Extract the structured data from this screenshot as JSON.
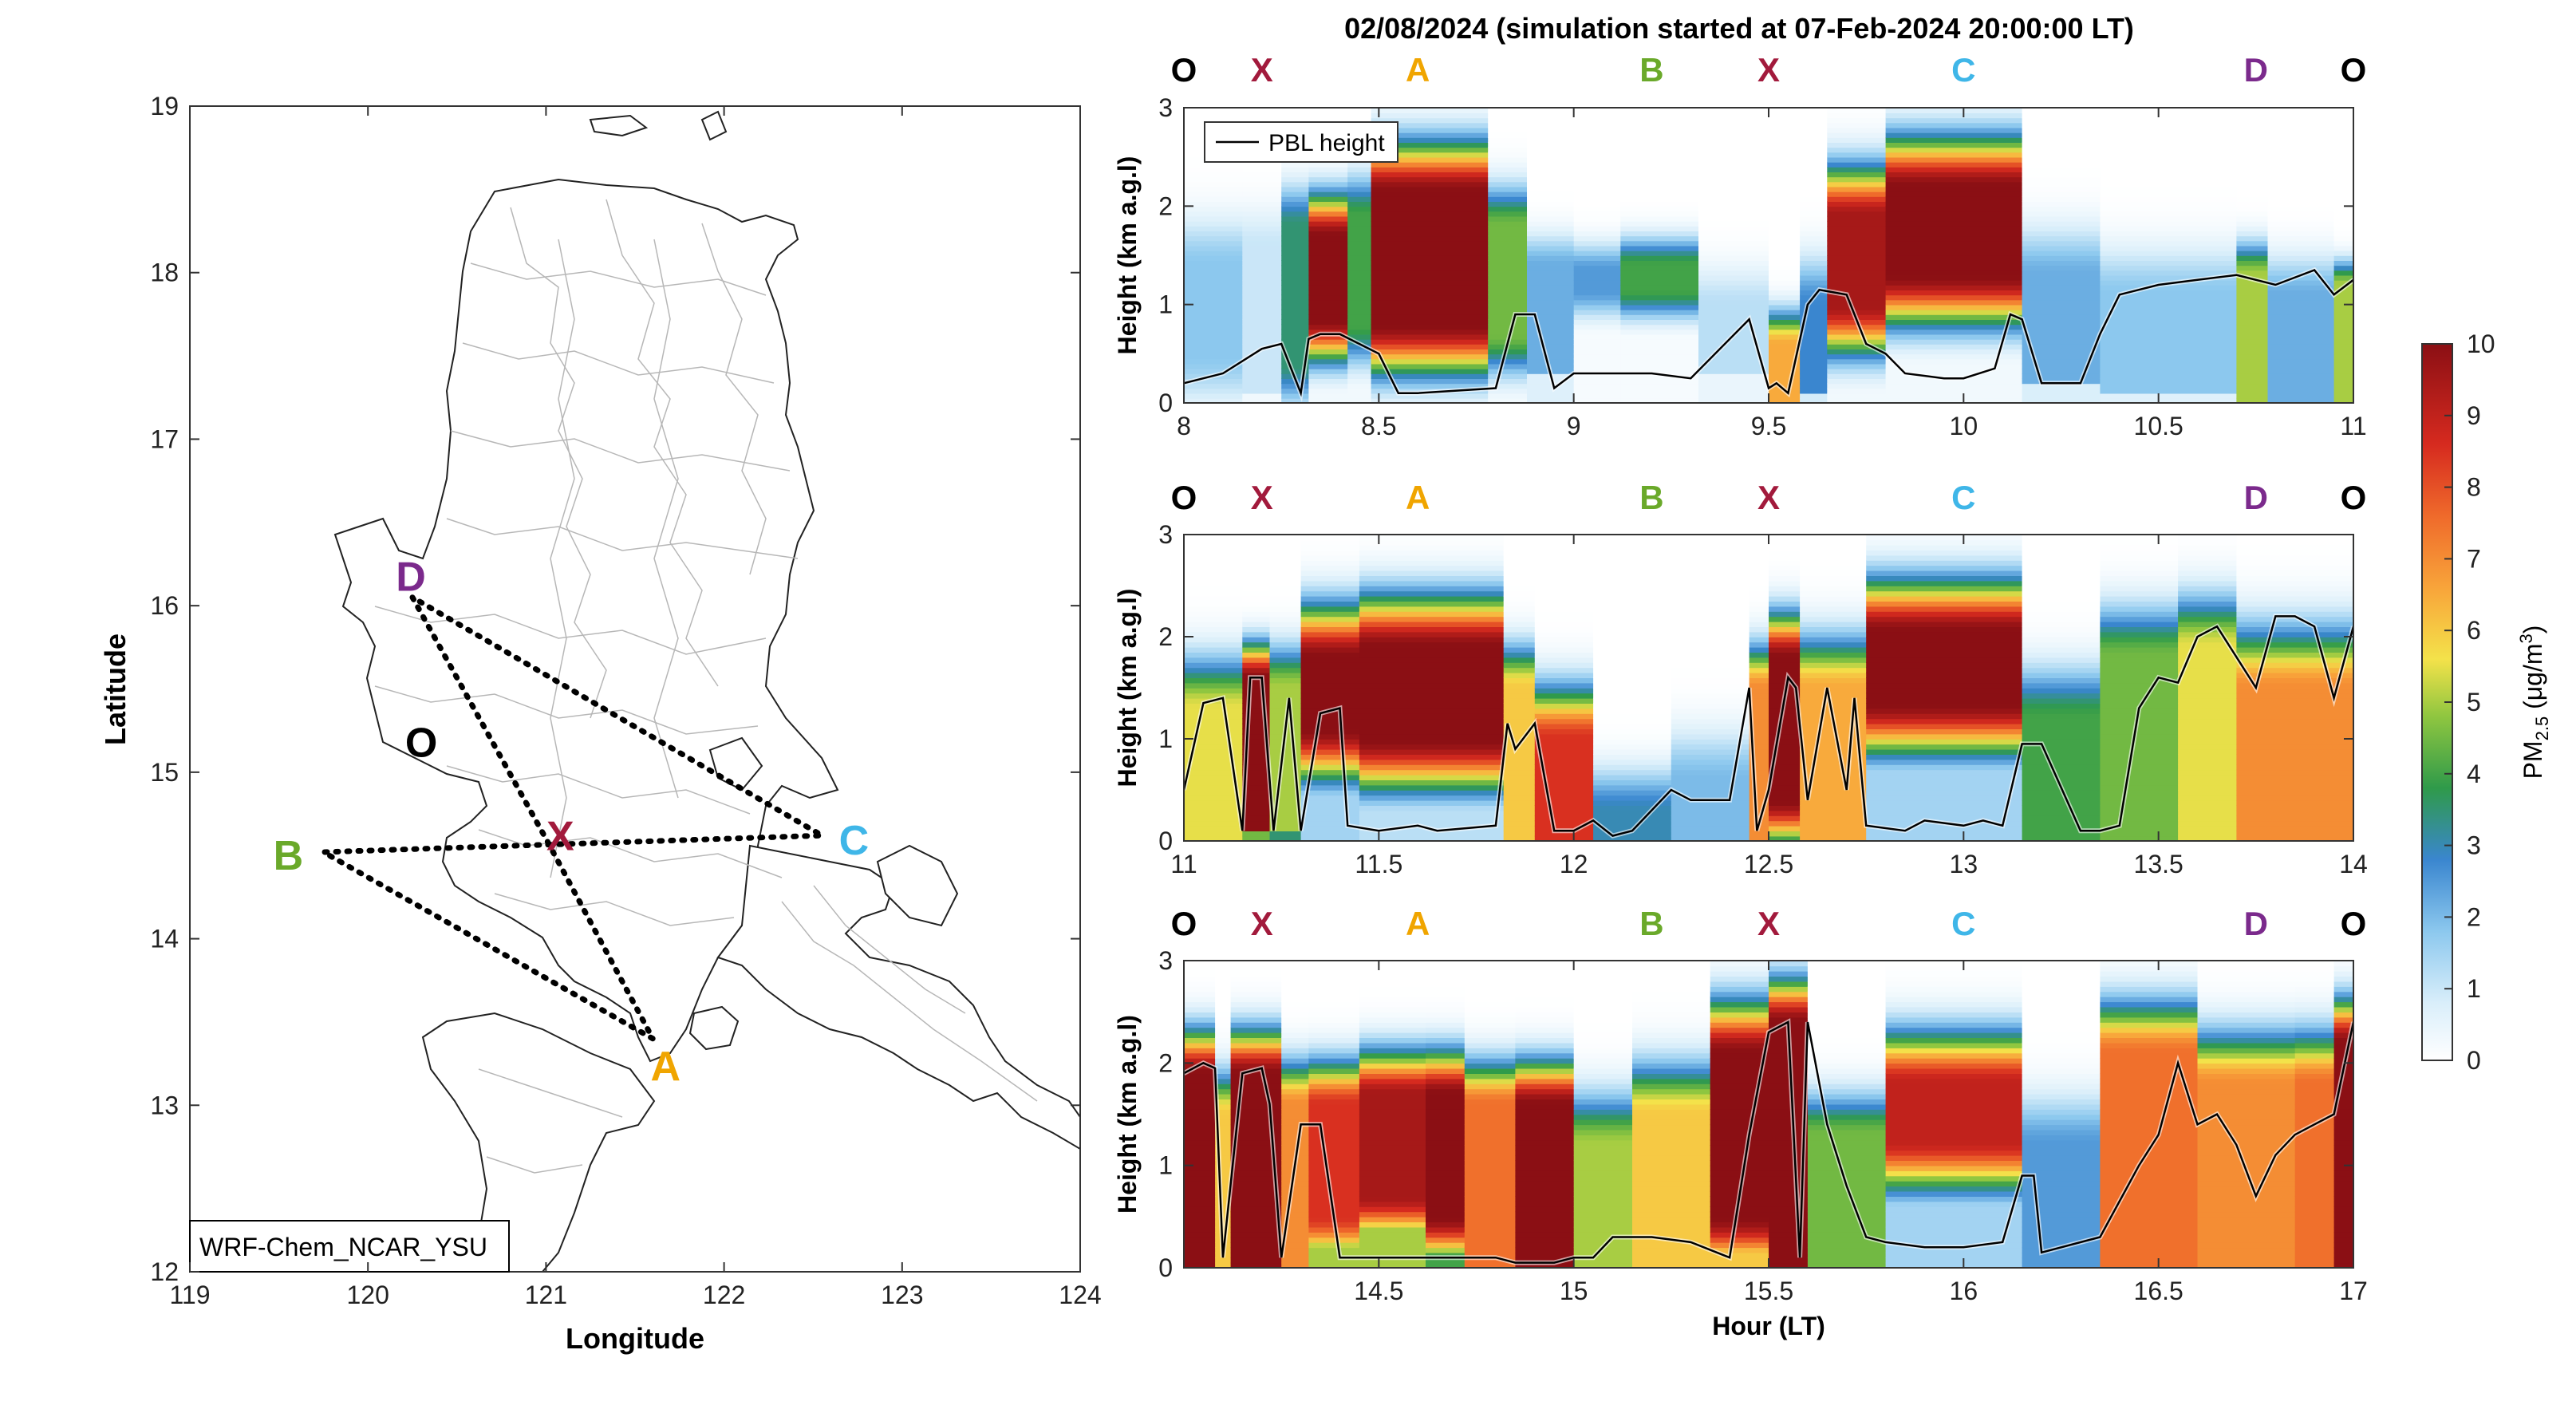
{
  "title": "02/08/2024 (simulation started at 07-Feb-2024 20:00:00 LT)",
  "colors": {
    "O": "#000000",
    "X": "#a21a3c",
    "A": "#f0a500",
    "B": "#6aa92a",
    "C": "#3fb6e8",
    "D": "#7b2a8c",
    "route": "#000000",
    "pbl": "#000000"
  },
  "map": {
    "xlabel": "Longitude",
    "ylabel": "Latitude",
    "xlim": [
      119,
      124
    ],
    "ylim": [
      12,
      19
    ],
    "xticks": [
      "119",
      "120",
      "121",
      "122",
      "123",
      "124"
    ],
    "yticks": [
      "12",
      "13",
      "14",
      "15",
      "16",
      "17",
      "18",
      "19"
    ],
    "model_label": "WRF-Chem_NCAR_YSU",
    "points": [
      {
        "name": "O",
        "lon": 120.3,
        "lat": 15.17
      },
      {
        "name": "X",
        "lon": 121.0,
        "lat": 14.6
      },
      {
        "name": "A",
        "lon": 121.6,
        "lat": 13.4
      },
      {
        "name": "B",
        "lon": 119.75,
        "lat": 14.52
      },
      {
        "name": "C",
        "lon": 122.55,
        "lat": 14.62
      },
      {
        "name": "D",
        "lon": 120.25,
        "lat": 16.05
      }
    ],
    "route": [
      "D",
      "X",
      "A",
      "B",
      "C",
      "D"
    ]
  },
  "chart_data": [
    {
      "type": "heatmap",
      "variable": "PM2.5",
      "xlim": [
        8,
        11
      ],
      "ylim": [
        0,
        3
      ],
      "ylabel": "Height (km a.g.l)",
      "xticks": [
        "8",
        "8.5",
        "9",
        "9.5",
        "10",
        "10.5",
        "11"
      ],
      "yticks": [
        "0",
        "1",
        "2",
        "3"
      ],
      "legend": "PBL height",
      "legend_position": "top-left",
      "segment_labels": [
        {
          "label": "O",
          "x": 8.0
        },
        {
          "label": "X",
          "x": 8.2
        },
        {
          "label": "A",
          "x": 8.6
        },
        {
          "label": "B",
          "x": 9.2
        },
        {
          "label": "X",
          "x": 9.5
        },
        {
          "label": "C",
          "x": 10.0
        },
        {
          "label": "D",
          "x": 10.75
        },
        {
          "label": "O",
          "x": 11.0
        }
      ],
      "columns": [
        {
          "x0": 8.0,
          "x1": 8.15,
          "base": 0.1,
          "peak": 1.8,
          "top": 1.4,
          "bot": 0.5,
          "spread": 0.6
        },
        {
          "x0": 8.15,
          "x1": 8.25,
          "base": 0.1,
          "peak": 1.0,
          "top": 1.6,
          "bot": 0.1,
          "spread": 0.5
        },
        {
          "x0": 8.25,
          "x1": 8.32,
          "base": 0.2,
          "peak": 3.5,
          "top": 1.8,
          "bot": 0.4,
          "spread": 0.5
        },
        {
          "x0": 8.32,
          "x1": 8.42,
          "base": 0.3,
          "peak": 10,
          "top": 1.7,
          "bot": 0.85,
          "spread": 0.5
        },
        {
          "x0": 8.42,
          "x1": 8.48,
          "base": 0.3,
          "peak": 4,
          "top": 1.9,
          "bot": 0.8,
          "spread": 0.5
        },
        {
          "x0": 8.48,
          "x1": 8.78,
          "base": 0.3,
          "peak": 10,
          "top": 2.15,
          "bot": 0.8,
          "spread": 0.6
        },
        {
          "x0": 8.78,
          "x1": 8.88,
          "base": 0.3,
          "peak": 4.5,
          "top": 1.8,
          "bot": 0.7,
          "spread": 0.5
        },
        {
          "x0": 8.88,
          "x1": 9.0,
          "base": 0.2,
          "peak": 2.2,
          "top": 1.4,
          "bot": 0.3,
          "spread": 0.4
        },
        {
          "x0": 9.0,
          "x1": 9.12,
          "base": 0.2,
          "peak": 2.5,
          "top": 1.35,
          "bot": 1.15,
          "spread": 0.35
        },
        {
          "x0": 9.12,
          "x1": 9.32,
          "base": 0.2,
          "peak": 4,
          "top": 1.4,
          "bot": 1.15,
          "spread": 0.35
        },
        {
          "x0": 9.32,
          "x1": 9.5,
          "base": 0.2,
          "peak": 1.2,
          "top": 1.0,
          "bot": 0.3,
          "spread": 0.5
        },
        {
          "x0": 9.5,
          "x1": 9.58,
          "base": 0.2,
          "peak": 6.5,
          "top": 0.6,
          "bot": 0.0,
          "spread": 0.4
        },
        {
          "x0": 9.58,
          "x1": 9.65,
          "base": 0.2,
          "peak": 2.8,
          "top": 1.0,
          "bot": 0.1,
          "spread": 0.6
        },
        {
          "x0": 9.65,
          "x1": 9.8,
          "base": 0.3,
          "peak": 9.5,
          "top": 1.9,
          "bot": 1.0,
          "spread": 0.6
        },
        {
          "x0": 9.8,
          "x1": 10.15,
          "base": 0.3,
          "peak": 10,
          "top": 2.2,
          "bot": 1.3,
          "spread": 0.6
        },
        {
          "x0": 10.15,
          "x1": 10.35,
          "base": 0.3,
          "peak": 2.2,
          "top": 1.3,
          "bot": 0.2,
          "spread": 0.6
        },
        {
          "x0": 10.35,
          "x1": 10.7,
          "base": 0.3,
          "peak": 1.8,
          "top": 1.1,
          "bot": 0.1,
          "spread": 0.6
        },
        {
          "x0": 10.7,
          "x1": 10.78,
          "base": 0.3,
          "peak": 5,
          "top": 1.3,
          "bot": 0.0,
          "spread": 0.4
        },
        {
          "x0": 10.78,
          "x1": 10.95,
          "base": 0.3,
          "peak": 2.2,
          "top": 1.1,
          "bot": 0.0,
          "spread": 0.5
        },
        {
          "x0": 10.95,
          "x1": 11.0,
          "base": 0.3,
          "peak": 5,
          "top": 1.2,
          "bot": 0.0,
          "spread": 0.3
        }
      ],
      "pbl_height": {
        "x": [
          8.0,
          8.1,
          8.2,
          8.25,
          8.3,
          8.32,
          8.35,
          8.4,
          8.5,
          8.55,
          8.6,
          8.8,
          8.85,
          8.9,
          8.95,
          9.0,
          9.2,
          9.3,
          9.45,
          9.5,
          9.52,
          9.55,
          9.6,
          9.63,
          9.7,
          9.75,
          9.8,
          9.85,
          9.95,
          10.0,
          10.08,
          10.12,
          10.15,
          10.2,
          10.3,
          10.35,
          10.4,
          10.5,
          10.6,
          10.7,
          10.8,
          10.9,
          10.95,
          11.0
        ],
        "y": [
          0.2,
          0.3,
          0.55,
          0.6,
          0.1,
          0.65,
          0.7,
          0.7,
          0.5,
          0.1,
          0.1,
          0.15,
          0.9,
          0.9,
          0.15,
          0.3,
          0.3,
          0.25,
          0.85,
          0.15,
          0.2,
          0.1,
          1.0,
          1.15,
          1.1,
          0.6,
          0.5,
          0.3,
          0.25,
          0.25,
          0.35,
          0.9,
          0.85,
          0.2,
          0.2,
          0.7,
          1.1,
          1.2,
          1.25,
          1.3,
          1.2,
          1.35,
          1.1,
          1.25
        ]
      }
    },
    {
      "type": "heatmap",
      "variable": "PM2.5",
      "xlim": [
        11,
        14
      ],
      "ylim": [
        0,
        3
      ],
      "ylabel": "Height (km a.g.l)",
      "xticks": [
        "11",
        "11.5",
        "12",
        "12.5",
        "13",
        "13.5",
        "14"
      ],
      "yticks": [
        "0",
        "1",
        "2",
        "3"
      ],
      "segment_labels": [
        {
          "label": "O",
          "x": 11.0
        },
        {
          "label": "X",
          "x": 11.2
        },
        {
          "label": "A",
          "x": 11.6
        },
        {
          "label": "B",
          "x": 12.2
        },
        {
          "label": "X",
          "x": 12.5
        },
        {
          "label": "C",
          "x": 13.0
        },
        {
          "label": "D",
          "x": 13.75
        },
        {
          "label": "O",
          "x": 14.0
        }
      ],
      "columns": [
        {
          "x0": 11.0,
          "x1": 11.15,
          "base": 3,
          "peak": 5.5,
          "top": 1.3,
          "bot": 0.0,
          "spread": 0.6
        },
        {
          "x0": 11.15,
          "x1": 11.22,
          "base": 3,
          "peak": 10,
          "top": 1.6,
          "bot": 0.1,
          "spread": 0.4
        },
        {
          "x0": 11.22,
          "x1": 11.3,
          "base": 3,
          "peak": 5,
          "top": 1.5,
          "bot": 0.1,
          "spread": 0.5
        },
        {
          "x0": 11.3,
          "x1": 11.45,
          "base": 1.5,
          "peak": 10,
          "top": 1.8,
          "bot": 1.1,
          "spread": 0.6
        },
        {
          "x0": 11.45,
          "x1": 11.82,
          "base": 1.2,
          "peak": 10,
          "top": 1.9,
          "bot": 1.0,
          "spread": 0.6
        },
        {
          "x0": 11.82,
          "x1": 11.9,
          "base": 3,
          "peak": 6,
          "top": 1.5,
          "bot": 0.0,
          "spread": 0.5
        },
        {
          "x0": 11.9,
          "x1": 12.05,
          "base": 3,
          "peak": 8.5,
          "top": 1.0,
          "bot": 0.0,
          "spread": 0.6
        },
        {
          "x0": 12.05,
          "x1": 12.25,
          "base": 1.5,
          "peak": 3,
          "top": 0.3,
          "bot": 0.0,
          "spread": 0.5
        },
        {
          "x0": 12.25,
          "x1": 12.45,
          "base": 1.5,
          "peak": 2,
          "top": 0.6,
          "bot": 0.0,
          "spread": 0.6
        },
        {
          "x0": 12.45,
          "x1": 12.5,
          "base": 3,
          "peak": 7,
          "top": 1.5,
          "bot": 0.0,
          "spread": 0.5
        },
        {
          "x0": 12.5,
          "x1": 12.58,
          "base": 3,
          "peak": 10,
          "top": 1.8,
          "bot": 0.4,
          "spread": 0.5
        },
        {
          "x0": 12.58,
          "x1": 12.75,
          "base": 3,
          "peak": 6.5,
          "top": 1.5,
          "bot": 0.0,
          "spread": 0.6
        },
        {
          "x0": 12.75,
          "x1": 13.15,
          "base": 1.5,
          "peak": 10,
          "top": 2.05,
          "bot": 1.35,
          "spread": 0.6
        },
        {
          "x0": 13.15,
          "x1": 13.35,
          "base": 1.5,
          "peak": 4,
          "top": 1.2,
          "bot": 0.0,
          "spread": 0.6
        },
        {
          "x0": 13.35,
          "x1": 13.55,
          "base": 3.5,
          "peak": 4.5,
          "top": 1.8,
          "bot": 0.0,
          "spread": 0.6
        },
        {
          "x0": 13.55,
          "x1": 13.7,
          "base": 3.5,
          "peak": 5.5,
          "top": 1.9,
          "bot": 0.0,
          "spread": 0.6
        },
        {
          "x0": 13.7,
          "x1": 14.0,
          "base": 5,
          "peak": 7,
          "top": 1.5,
          "bot": 0.0,
          "spread": 0.7
        }
      ],
      "pbl_height": {
        "x": [
          11.0,
          11.05,
          11.1,
          11.15,
          11.17,
          11.2,
          11.23,
          11.27,
          11.3,
          11.35,
          11.4,
          11.42,
          11.5,
          11.6,
          11.65,
          11.8,
          11.83,
          11.85,
          11.9,
          11.95,
          12.0,
          12.05,
          12.1,
          12.15,
          12.25,
          12.3,
          12.4,
          12.45,
          12.47,
          12.5,
          12.55,
          12.57,
          12.6,
          12.65,
          12.7,
          12.72,
          12.75,
          12.85,
          12.9,
          13.0,
          13.05,
          13.1,
          13.15,
          13.2,
          13.3,
          13.35,
          13.4,
          13.45,
          13.5,
          13.55,
          13.6,
          13.65,
          13.7,
          13.75,
          13.8,
          13.85,
          13.9,
          13.95,
          14.0
        ],
        "y": [
          0.5,
          1.35,
          1.4,
          0.1,
          1.6,
          1.6,
          0.1,
          1.4,
          0.1,
          1.25,
          1.3,
          0.15,
          0.1,
          0.15,
          0.1,
          0.15,
          1.15,
          0.9,
          1.15,
          0.1,
          0.1,
          0.2,
          0.05,
          0.1,
          0.5,
          0.4,
          0.4,
          1.5,
          0.1,
          0.5,
          1.6,
          1.5,
          0.4,
          1.5,
          0.5,
          1.4,
          0.15,
          0.1,
          0.2,
          0.15,
          0.2,
          0.15,
          0.95,
          0.95,
          0.1,
          0.1,
          0.15,
          1.3,
          1.6,
          1.55,
          2.0,
          2.1,
          1.8,
          1.5,
          2.2,
          2.2,
          2.1,
          1.4,
          2.1
        ]
      }
    },
    {
      "type": "heatmap",
      "variable": "PM2.5",
      "xlim": [
        14,
        17
      ],
      "ylim": [
        0,
        3
      ],
      "xlabel": "Hour (LT)",
      "ylabel": "Height (km a.g.l)",
      "xticks": [
        "14.5",
        "15",
        "15.5",
        "16",
        "16.5",
        "17"
      ],
      "yticks": [
        "0",
        "1",
        "2",
        "3"
      ],
      "segment_labels": [
        {
          "label": "O",
          "x": 14.0
        },
        {
          "label": "X",
          "x": 14.2
        },
        {
          "label": "A",
          "x": 14.6
        },
        {
          "label": "B",
          "x": 15.2
        },
        {
          "label": "X",
          "x": 15.5
        },
        {
          "label": "C",
          "x": 16.0
        },
        {
          "label": "D",
          "x": 16.75
        },
        {
          "label": "O",
          "x": 17.0
        }
      ],
      "columns": [
        {
          "x0": 14.0,
          "x1": 14.08,
          "base": 5,
          "peak": 10,
          "top": 1.9,
          "bot": 0.0,
          "spread": 0.5
        },
        {
          "x0": 14.08,
          "x1": 14.12,
          "base": 5,
          "peak": 6,
          "top": 1.5,
          "bot": 0.0,
          "spread": 0.5
        },
        {
          "x0": 14.12,
          "x1": 14.25,
          "base": 8,
          "peak": 10,
          "top": 1.9,
          "bot": 0.0,
          "spread": 0.5
        },
        {
          "x0": 14.25,
          "x1": 14.32,
          "base": 5,
          "peak": 7,
          "top": 1.6,
          "bot": 0.0,
          "spread": 0.5
        },
        {
          "x0": 14.32,
          "x1": 14.45,
          "base": 5,
          "peak": 8.5,
          "top": 1.6,
          "bot": 0.5,
          "spread": 0.5
        },
        {
          "x0": 14.45,
          "x1": 14.62,
          "base": 5,
          "peak": 9.5,
          "top": 1.7,
          "bot": 0.7,
          "spread": 0.5
        },
        {
          "x0": 14.62,
          "x1": 14.72,
          "base": 4,
          "peak": 10,
          "top": 1.7,
          "bot": 0.5,
          "spread": 0.5
        },
        {
          "x0": 14.72,
          "x1": 14.85,
          "base": 6,
          "peak": 7.5,
          "top": 1.6,
          "bot": 0.0,
          "spread": 0.5
        },
        {
          "x0": 14.85,
          "x1": 15.0,
          "base": 6,
          "peak": 10,
          "top": 1.6,
          "bot": 0.0,
          "spread": 0.5
        },
        {
          "x0": 15.0,
          "x1": 15.15,
          "base": 4,
          "peak": 5,
          "top": 1.2,
          "bot": 0.0,
          "spread": 0.6
        },
        {
          "x0": 15.15,
          "x1": 15.35,
          "base": 4,
          "peak": 6,
          "top": 1.5,
          "bot": 0.0,
          "spread": 0.6
        },
        {
          "x0": 15.35,
          "x1": 15.5,
          "base": 6,
          "peak": 10,
          "top": 2.1,
          "bot": 0.5,
          "spread": 0.6
        },
        {
          "x0": 15.5,
          "x1": 15.6,
          "base": 6,
          "peak": 10,
          "top": 2.4,
          "bot": 0.0,
          "spread": 0.5
        },
        {
          "x0": 15.6,
          "x1": 15.8,
          "base": 4,
          "peak": 4.5,
          "top": 1.3,
          "bot": 0.0,
          "spread": 0.5
        },
        {
          "x0": 15.8,
          "x1": 16.15,
          "base": 1.5,
          "peak": 9,
          "top": 1.8,
          "bot": 1.25,
          "spread": 0.6
        },
        {
          "x0": 16.15,
          "x1": 16.35,
          "base": 1.5,
          "peak": 2.5,
          "top": 1.2,
          "bot": 0.0,
          "spread": 0.6
        },
        {
          "x0": 16.35,
          "x1": 16.6,
          "base": 5.5,
          "peak": 7.5,
          "top": 2.1,
          "bot": 0.0,
          "spread": 0.6
        },
        {
          "x0": 16.6,
          "x1": 16.85,
          "base": 5,
          "peak": 7,
          "top": 1.8,
          "bot": 0.0,
          "spread": 0.6
        },
        {
          "x0": 16.85,
          "x1": 16.95,
          "base": 6,
          "peak": 7.5,
          "top": 1.8,
          "bot": 0.0,
          "spread": 0.6
        },
        {
          "x0": 16.95,
          "x1": 17.0,
          "base": 8,
          "peak": 10,
          "top": 2.2,
          "bot": 0.0,
          "spread": 0.5
        }
      ],
      "pbl_height": {
        "x": [
          14.0,
          14.05,
          14.08,
          14.1,
          14.15,
          14.2,
          14.22,
          14.25,
          14.3,
          14.35,
          14.4,
          14.45,
          14.5,
          14.6,
          14.7,
          14.8,
          14.85,
          14.95,
          15.0,
          15.05,
          15.1,
          15.2,
          15.3,
          15.4,
          15.45,
          15.5,
          15.55,
          15.58,
          15.6,
          15.65,
          15.7,
          15.75,
          15.8,
          15.9,
          16.0,
          16.1,
          16.15,
          16.18,
          16.2,
          16.35,
          16.45,
          16.5,
          16.55,
          16.6,
          16.65,
          16.7,
          16.75,
          16.8,
          16.85,
          16.9,
          16.95,
          17.0
        ],
        "y": [
          1.9,
          2.0,
          1.95,
          0.1,
          1.9,
          1.95,
          1.6,
          0.1,
          1.4,
          1.4,
          0.1,
          0.1,
          0.1,
          0.1,
          0.1,
          0.1,
          0.05,
          0.05,
          0.1,
          0.1,
          0.3,
          0.3,
          0.25,
          0.1,
          1.3,
          2.3,
          2.4,
          0.1,
          2.4,
          1.4,
          0.8,
          0.3,
          0.25,
          0.2,
          0.2,
          0.25,
          0.9,
          0.9,
          0.15,
          0.3,
          1.0,
          1.3,
          2.0,
          1.4,
          1.5,
          1.2,
          0.7,
          1.1,
          1.3,
          1.4,
          1.5,
          2.4
        ]
      }
    }
  ],
  "colorbar": {
    "label": "PM",
    "label_sub": "2.5",
    "label_unit": " (μg/m",
    "label_sup": "3",
    "label_close": ")",
    "min": 0,
    "max": 10,
    "ticks": [
      "0",
      "1",
      "2",
      "3",
      "4",
      "5",
      "6",
      "7",
      "8",
      "9",
      "10"
    ]
  }
}
